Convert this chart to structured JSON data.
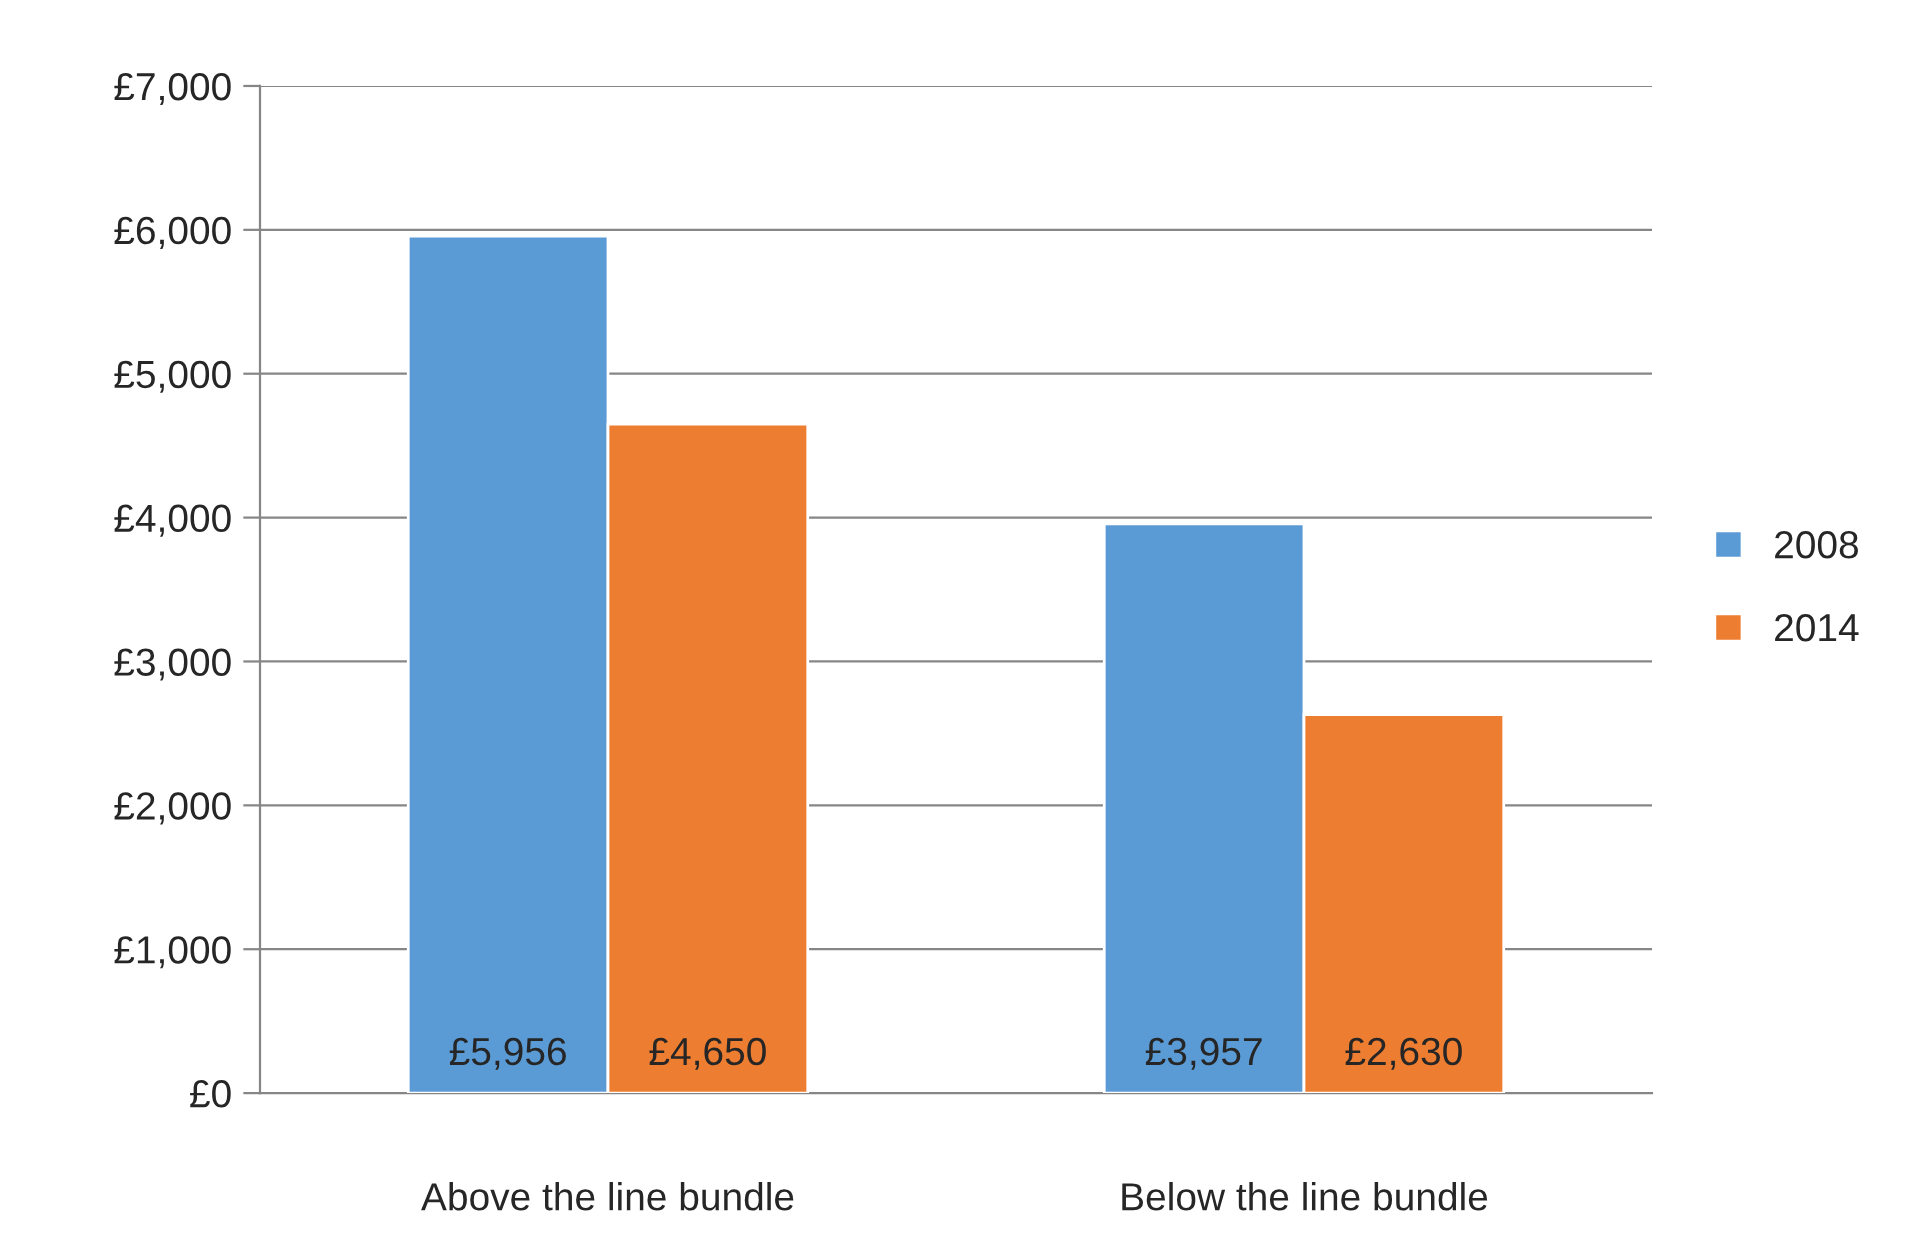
{
  "chart_data": {
    "type": "bar",
    "categories": [
      "Above the line bundle",
      "Below the line bundle"
    ],
    "series": [
      {
        "name": "2008",
        "color": "#5b9bd5",
        "values": [
          5956,
          3957
        ],
        "value_labels": [
          "£5,956",
          "£3,957"
        ]
      },
      {
        "name": "2014",
        "color": "#ed7d31",
        "values": [
          4650,
          2630
        ],
        "value_labels": [
          "£4,650",
          "£2,630"
        ]
      }
    ],
    "ylim": [
      0,
      7000
    ],
    "yticks": [
      {
        "value": 0,
        "label": "£0"
      },
      {
        "value": 1000,
        "label": "£1,000"
      },
      {
        "value": 2000,
        "label": "£2,000"
      },
      {
        "value": 3000,
        "label": "£3,000"
      },
      {
        "value": 4000,
        "label": "£4,000"
      },
      {
        "value": 5000,
        "label": "£5,000"
      },
      {
        "value": 6000,
        "label": "£6,000"
      },
      {
        "value": 7000,
        "label": "£7,000"
      }
    ],
    "grid": "y",
    "legend": "right"
  }
}
